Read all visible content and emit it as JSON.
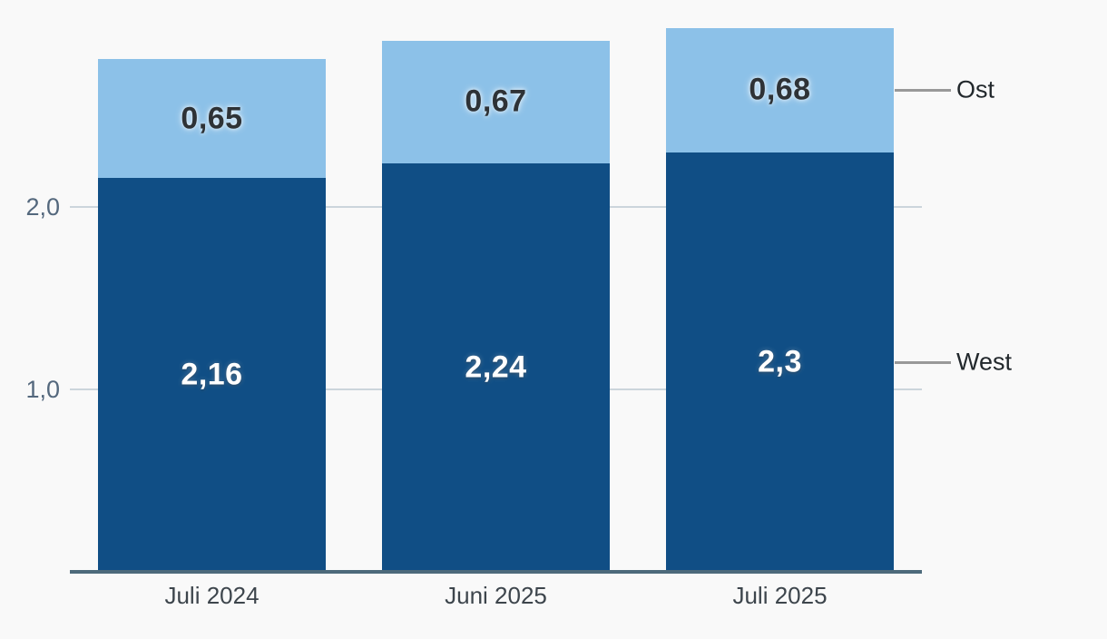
{
  "background": "#f9f9f9",
  "chart_data": {
    "type": "bar",
    "stacked": true,
    "orientation": "vertical",
    "categories": [
      "Juli 2024",
      "Juni 2025",
      "Juli 2025"
    ],
    "series": [
      {
        "name": "West",
        "color": "#104e85",
        "values": [
          2.16,
          2.24,
          2.3
        ],
        "value_labels": [
          "2,16",
          "2,24",
          "2,3"
        ]
      },
      {
        "name": "Ost",
        "color": "#8cc1e8",
        "values": [
          0.65,
          0.67,
          0.68
        ],
        "value_labels": [
          "0,65",
          "0,67",
          "0,68"
        ]
      }
    ],
    "y_axis": {
      "range": [
        0,
        3
      ],
      "grid": true,
      "ticks": [
        {
          "value": 1,
          "label": "1,0"
        },
        {
          "value": 2,
          "label": "2,0"
        }
      ]
    },
    "legend": {
      "position": "right",
      "entries": [
        "Ost",
        "West"
      ]
    }
  },
  "colors": {
    "grid_line": "#ccd5dc",
    "axis_line": "#4d6a7b",
    "tick_label": "#54687d",
    "x_label": "#3d454c",
    "legend_text": "#22282c",
    "legend_line": "#999999",
    "label_on_dark": "#ffffff",
    "label_on_light": "#2e3236"
  }
}
